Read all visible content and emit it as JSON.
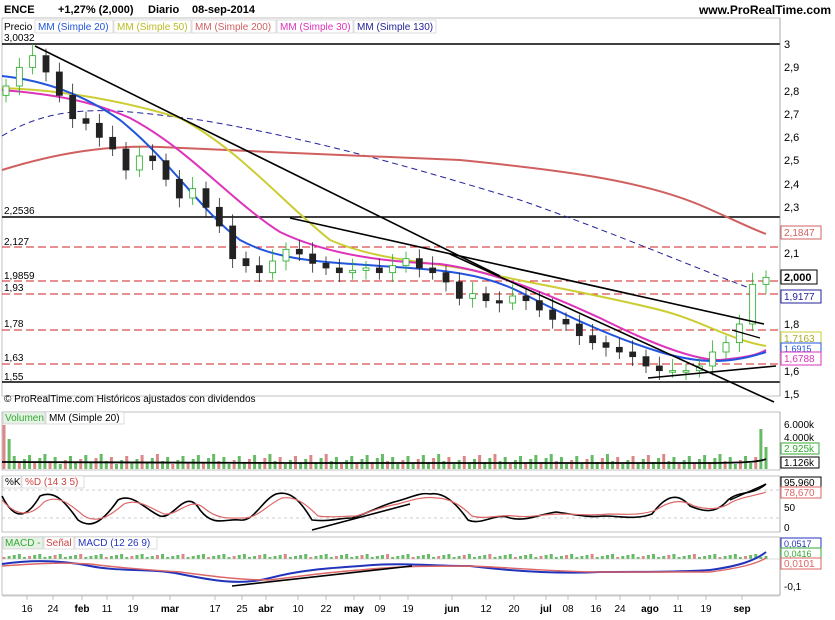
{
  "header": {
    "symbol": "ENCE",
    "change": "+1,27% (2,000)",
    "period": "Diario",
    "date": "08-sep-2014",
    "site": "www.ProRealTime.com"
  },
  "price_legend": [
    {
      "label": "MM (Simple 20)",
      "color": "#2255dd"
    },
    {
      "label": "MM (Simple 50)",
      "color": "#cccc33"
    },
    {
      "label": "MM (Simple 200)",
      "color": "#d06060"
    },
    {
      "label": "MM (Simple 30)",
      "color": "#dd33bb"
    },
    {
      "label": "MM (Simple 130)",
      "color": "#222299"
    }
  ],
  "price_title": "Precio",
  "price_footer": "© ProRealTime.com  Históricos ajustados con dividendos",
  "left_labels": [
    "3,0032",
    "2,2536",
    "2,127",
    "1,9859",
    "1,93",
    "1,78",
    "1,63",
    "1,55"
  ],
  "price_axis_ticks": [
    "3",
    "2,9",
    "2,8",
    "2,7",
    "2,6",
    "2,5",
    "2,4",
    "2,3",
    "2,1",
    "1,8",
    "1,6",
    "1,5"
  ],
  "price_badges": [
    {
      "text": "2,1847",
      "color": "#d06060"
    },
    {
      "text": "2,000",
      "color": "#000000"
    },
    {
      "text": "1,9177",
      "color": "#222299"
    },
    {
      "text": "1,7163",
      "color": "#cccc33"
    },
    {
      "text": "1,6915",
      "color": "#2255dd"
    },
    {
      "text": "1,6788",
      "color": "#dd33bb"
    }
  ],
  "volume_panel": {
    "legend": [
      "Volumen",
      "MM (Simple 20)"
    ],
    "ticks": [
      "6.000k",
      "4.000k",
      "2.925k",
      "1.126k"
    ]
  },
  "stoch_panel": {
    "legend": [
      "%K",
      "%D (14 3 5)"
    ],
    "ticks": [
      "95,960",
      "78,670",
      "50",
      "0"
    ]
  },
  "macd_panel": {
    "legend": [
      "MACD - señal",
      "Señal",
      "MACD (12 26 9)"
    ],
    "ticks": [
      "0,0517",
      "0,0416",
      "0,0101",
      "-0,1"
    ]
  },
  "x_axis": [
    "16",
    "24",
    "feb",
    "11",
    "19",
    "mar",
    "17",
    "25",
    "abr",
    "10",
    "22",
    "may",
    "09",
    "19",
    "jun",
    "12",
    "20",
    "jul",
    "08",
    "16",
    "24",
    "ago",
    "11",
    "19",
    "sep"
  ],
  "chart_data": {
    "type": "candlestick",
    "symbol": "ENCE",
    "period": "Diario",
    "ylim": [
      1.5,
      3.0
    ],
    "x_tick_labels": [
      "16",
      "24",
      "feb",
      "11",
      "19",
      "mar",
      "17",
      "25",
      "abr",
      "10",
      "22",
      "may",
      "09",
      "19",
      "jun",
      "12",
      "20",
      "jul",
      "08",
      "16",
      "24",
      "ago",
      "11",
      "19",
      "sep"
    ],
    "horizontal_levels": [
      3.0032,
      2.2536,
      2.127,
      1.9859,
      1.93,
      1.78,
      1.63,
      1.55
    ],
    "close_series": [
      2.82,
      2.9,
      2.95,
      2.88,
      2.78,
      2.68,
      2.66,
      2.6,
      2.55,
      2.46,
      2.52,
      2.5,
      2.42,
      2.34,
      2.38,
      2.3,
      2.22,
      2.08,
      2.05,
      2.02,
      2.07,
      2.12,
      2.1,
      2.06,
      2.04,
      2.02,
      2.03,
      2.04,
      2.02,
      2.05,
      2.08,
      2.04,
      2.02,
      1.98,
      1.91,
      1.93,
      1.9,
      1.89,
      1.92,
      1.9,
      1.86,
      1.82,
      1.8,
      1.75,
      1.72,
      1.7,
      1.68,
      1.66,
      1.62,
      1.6,
      1.6,
      1.6,
      1.62,
      1.68,
      1.72,
      1.8,
      1.97,
      2.0
    ],
    "last_close": 2.0,
    "moving_averages": [
      {
        "name": "MM (Simple 20)",
        "last": 1.6915
      },
      {
        "name": "MM (Simple 50)",
        "last": 1.7163
      },
      {
        "name": "MM (Simple 200)",
        "last": 2.1847
      },
      {
        "name": "MM (Simple 30)",
        "last": 1.6788
      },
      {
        "name": "MM (Simple 130)",
        "last": 1.9177
      }
    ],
    "volume_ticks": [
      "6.000k",
      "4.000k",
      "2.925k",
      "1.126k"
    ],
    "stochastic": {
      "name": "%D (14 3 5)",
      "k_last": 95.96,
      "d_last": 78.67
    },
    "macd": {
      "name": "MACD (12 26 9)",
      "macd_last": 0.0517,
      "signal_last": 0.0416,
      "hist_last": 0.0101
    }
  }
}
